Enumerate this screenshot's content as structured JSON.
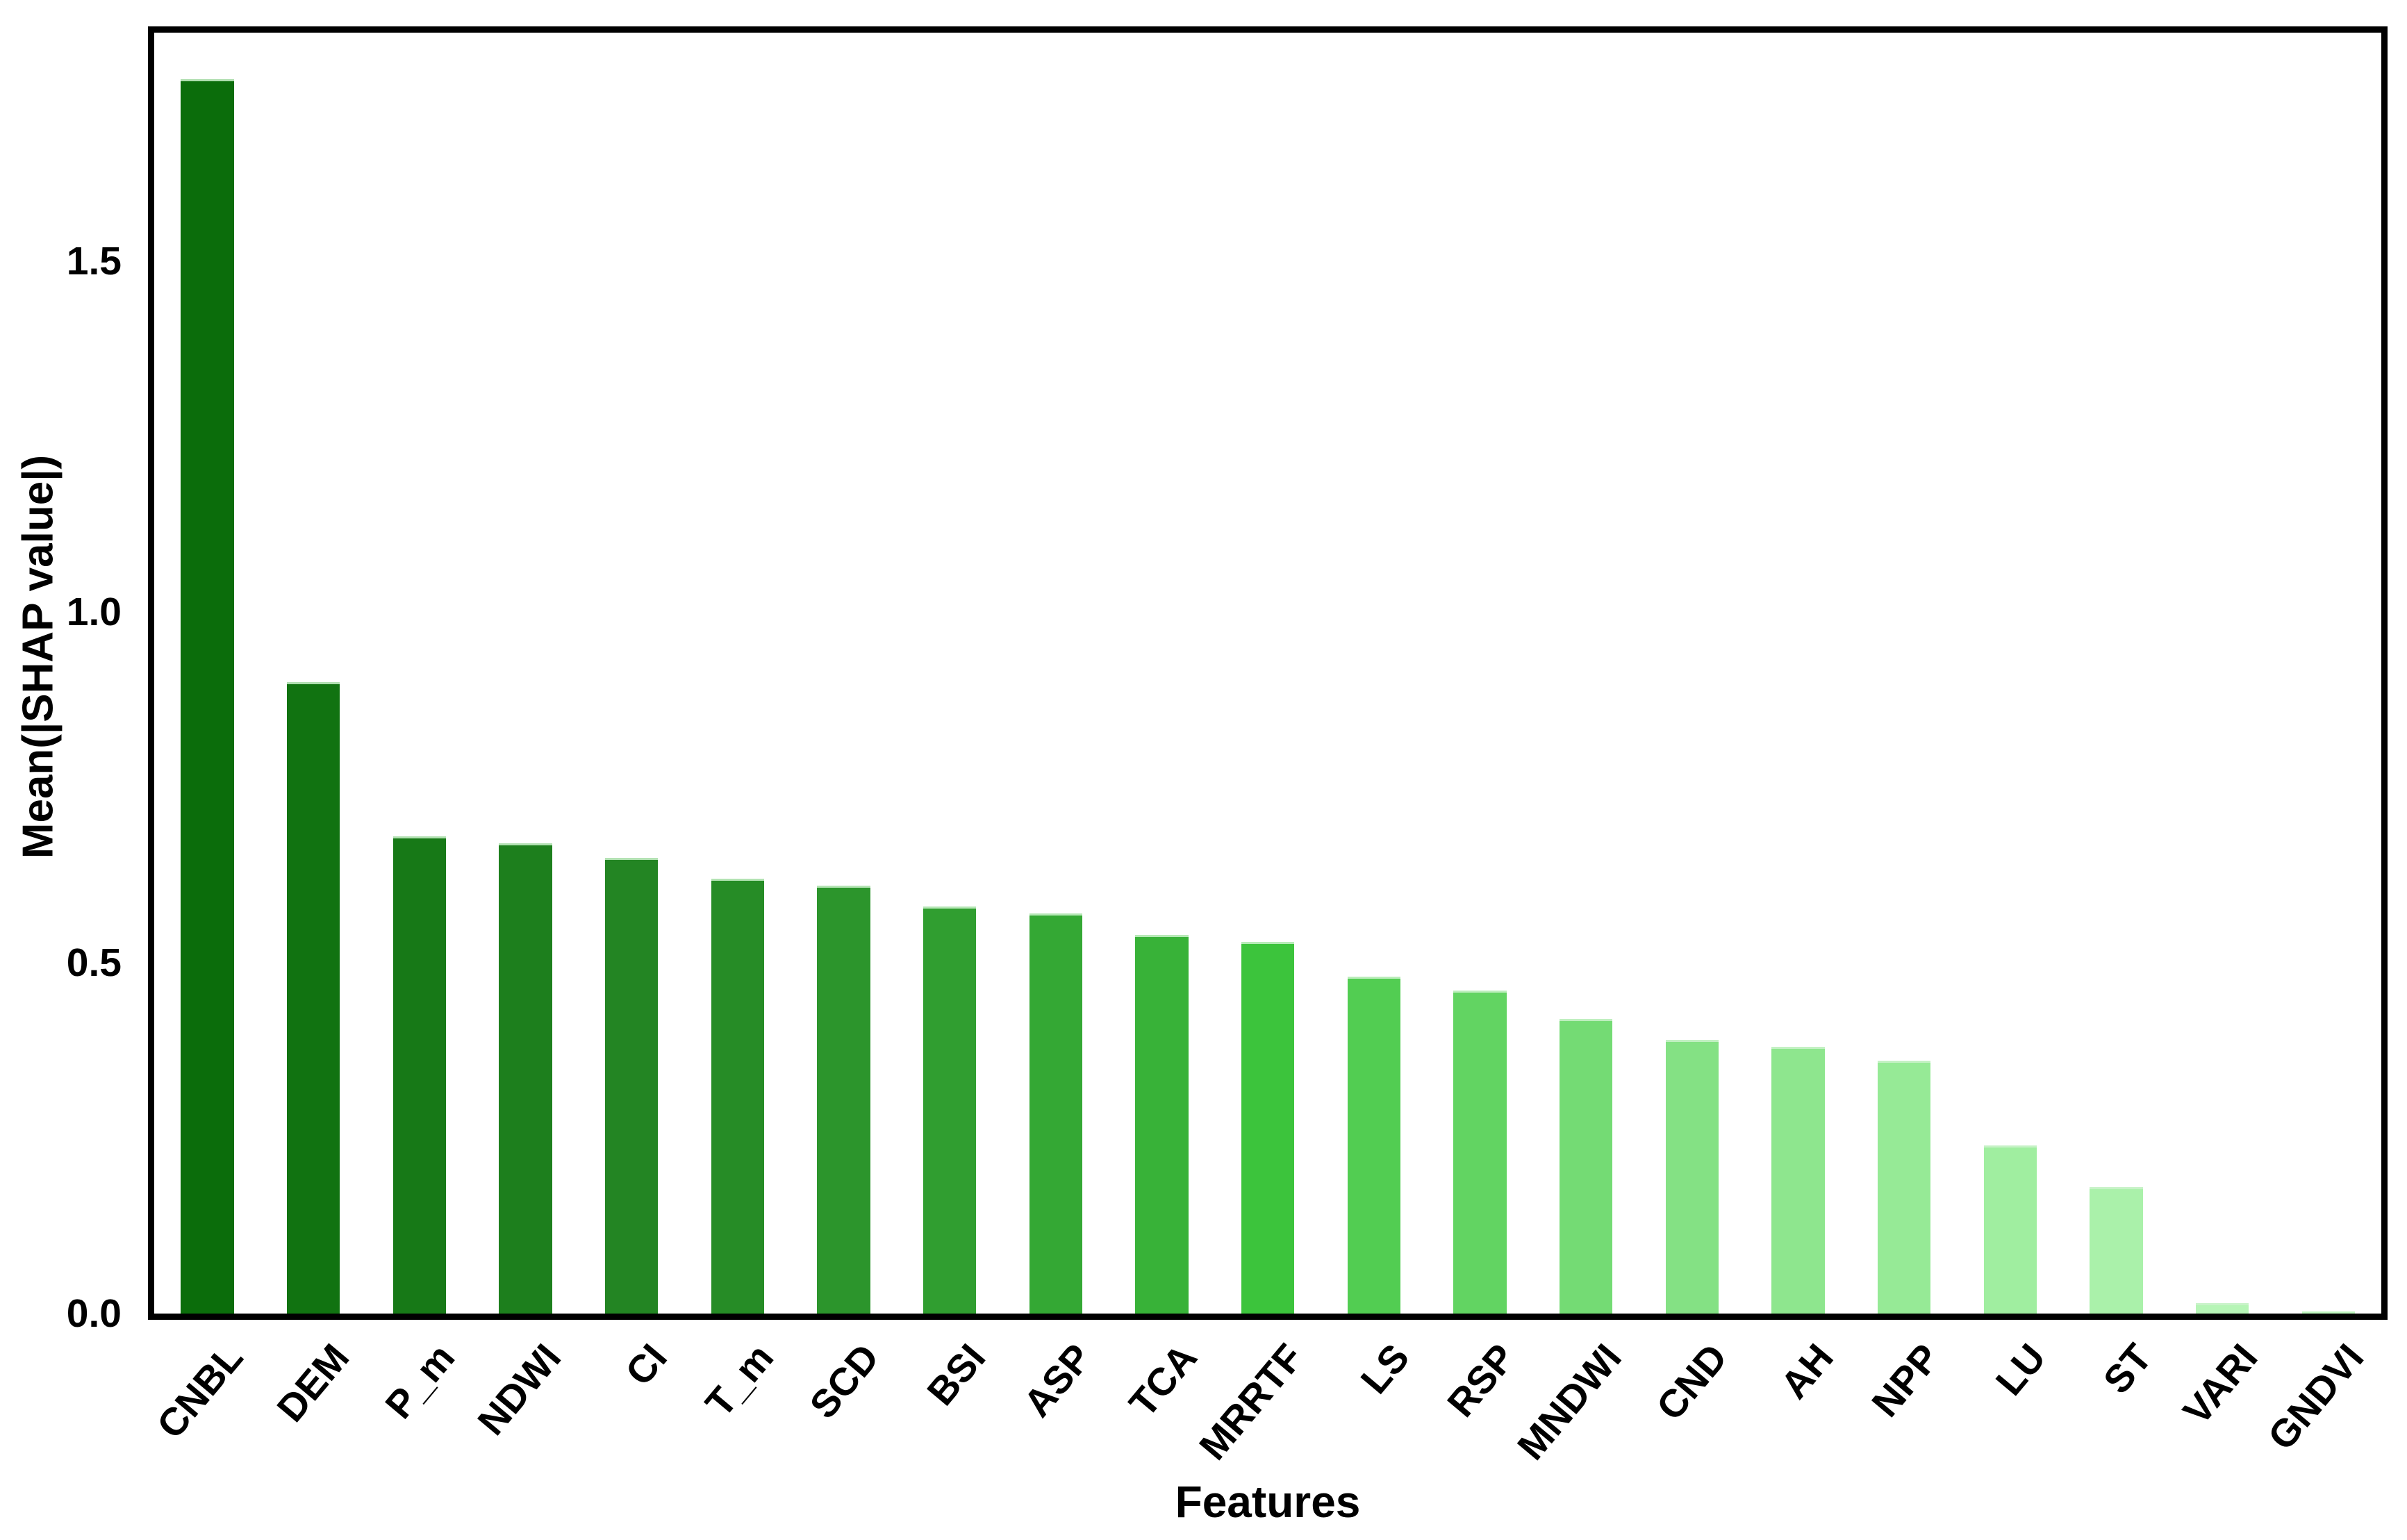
{
  "chart_data": {
    "type": "bar",
    "title": "",
    "xlabel": "Features",
    "ylabel": "Mean(|SHAP value|)",
    "categories": [
      "CNBL",
      "DEM",
      "P_m",
      "NDWI",
      "CI",
      "T_m",
      "SCD",
      "BSI",
      "ASP",
      "TCA",
      "MRRTF",
      "LS",
      "RSP",
      "MNDWI",
      "CND",
      "AH",
      "NPP",
      "LU",
      "ST",
      "VARI",
      "GNDVI"
    ],
    "values": [
      1.76,
      0.9,
      0.68,
      0.67,
      0.65,
      0.62,
      0.61,
      0.58,
      0.57,
      0.54,
      0.53,
      0.48,
      0.46,
      0.42,
      0.39,
      0.38,
      0.36,
      0.24,
      0.18,
      0.015,
      0.003
    ],
    "bar_colors": [
      "#0b6d0b",
      "#117311",
      "#177917",
      "#1d7f1d",
      "#238523",
      "#268c26",
      "#2c952c",
      "#309e30",
      "#34a834",
      "#38b238",
      "#3cc43c",
      "#52cd52",
      "#62d462",
      "#74db74",
      "#84e184",
      "#8ee68e",
      "#96ea96",
      "#a0eea0",
      "#aaf1aa",
      "#b6f5b6",
      "#c0f8c0"
    ],
    "ytick_labels": [
      "0.0",
      "0.5",
      "1.0",
      "1.5"
    ],
    "ylim": [
      0,
      1.826
    ],
    "grid": false,
    "legend": null,
    "x_tick_rotation_deg": 50,
    "axis_color": "#000000",
    "background_color": "#ffffff"
  }
}
